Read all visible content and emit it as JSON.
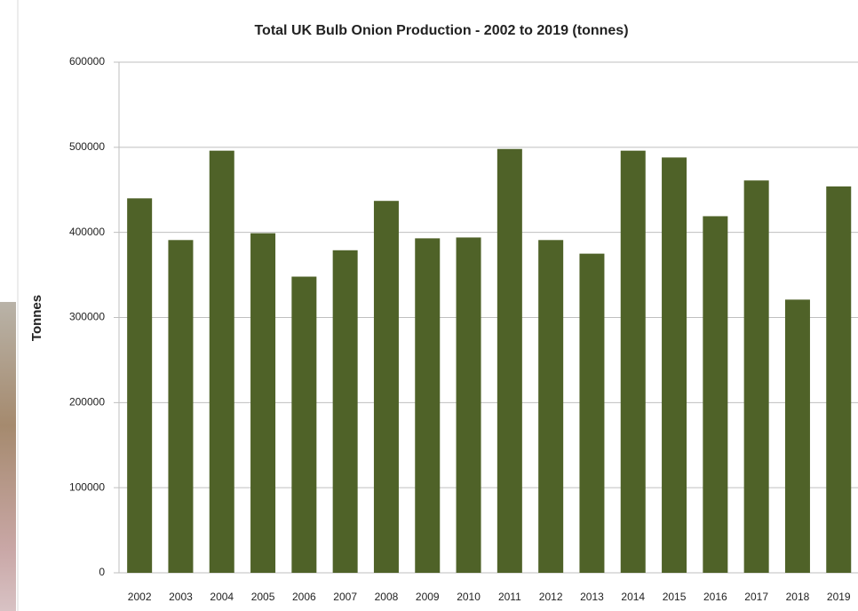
{
  "chart_data": {
    "type": "bar",
    "title": "Total UK Bulb Onion Production - 2002 to 2019 (tonnes)",
    "y_label": "Tonnes",
    "categories": [
      "2002",
      "2003",
      "2004",
      "2005",
      "2006",
      "2007",
      "2008",
      "2009",
      "2010",
      "2011",
      "2012",
      "2013",
      "2014",
      "2015",
      "2016",
      "2017",
      "2018",
      "2019"
    ],
    "values": [
      440000,
      391000,
      496000,
      399000,
      348000,
      379000,
      437000,
      393000,
      394000,
      498000,
      391000,
      375000,
      496000,
      488000,
      419000,
      461000,
      321000,
      454000
    ],
    "color": "#4f6228",
    "ylim": [
      0,
      600000
    ],
    "yticks": [
      0,
      100000,
      200000,
      300000,
      400000,
      500000,
      600000
    ],
    "grid": true
  }
}
